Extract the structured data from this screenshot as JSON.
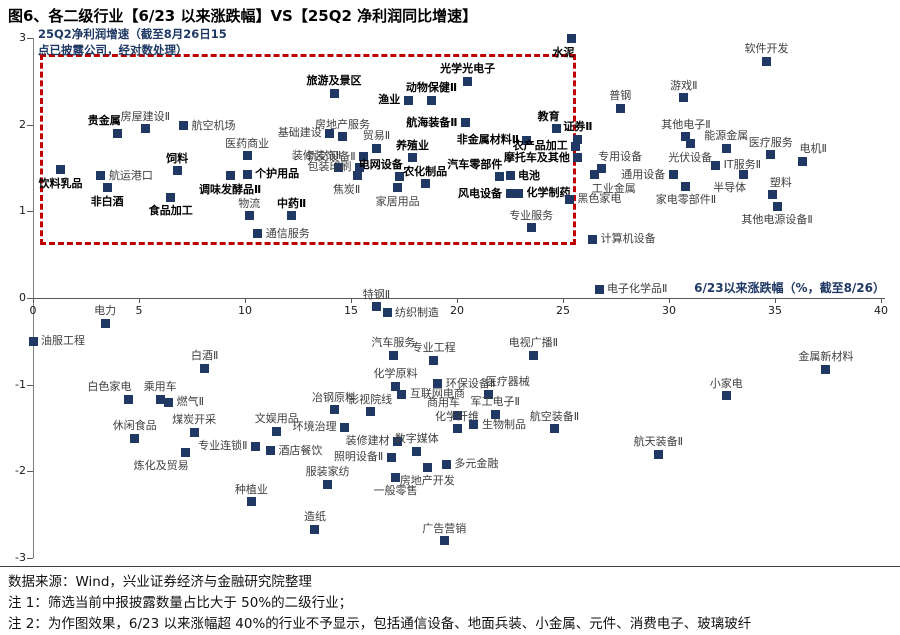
{
  "title": "图6、各二级行业【6/23 以来涨跌幅】VS【25Q2 净利润同比增速】",
  "footer": {
    "source": "数据来源：Wind，兴业证券经济与金融研究院整理",
    "note1": "注 1：筛选当前中报披露数量占比大于 50%的二级行业；",
    "note2": "注 2：为作图效果，6/23 以来涨幅超 40%的行业不予显示，包括通信设备、地面兵装、小金属、元件、消费电子、玻璃玻纤"
  },
  "chart_data": {
    "type": "scatter",
    "title": "图6、各二级行业【6/23 以来涨跌幅】VS【25Q2 净利润同比增速】",
    "xlabel": "6/23以来涨跌幅（%，截至8/26）",
    "ylabel": "25Q2净利润增速（截至8月26日15\n点已披露公司，经对数处理）",
    "xlim": [
      0,
      40
    ],
    "ylim": [
      -3,
      3
    ],
    "x_ticks": [
      0,
      5,
      10,
      15,
      20,
      25,
      30,
      35,
      40
    ],
    "y_ticks": [
      3,
      2,
      1,
      0,
      -1,
      -2,
      -3
    ],
    "grid": false,
    "legend_position": "none",
    "marker_color": "#1F3864",
    "highlight_box": {
      "x0": 0.33,
      "x1": 25.6,
      "y0": 0.61,
      "y1": 2.81,
      "color": "#C00000"
    },
    "points": [
      {
        "l": "饮料乳品",
        "x": 1.3,
        "y": 1.48,
        "p": "b",
        "b": 1
      },
      {
        "l": "航运港口",
        "x": 3.2,
        "y": 1.41,
        "p": "r",
        "b": 0
      },
      {
        "l": "非白酒",
        "x": 3.5,
        "y": 1.27,
        "p": "b",
        "b": 1
      },
      {
        "l": "贵金属",
        "x": 4.0,
        "y": 1.9,
        "p": "al",
        "b": 1
      },
      {
        "l": "房屋建设Ⅱ",
        "x": 5.3,
        "y": 1.95,
        "p": "a",
        "b": 0
      },
      {
        "l": "食品加工",
        "x": 6.5,
        "y": 1.16,
        "p": "b",
        "b": 1
      },
      {
        "l": "饲料",
        "x": 6.8,
        "y": 1.47,
        "p": "a",
        "b": 1
      },
      {
        "l": "航空机场",
        "x": 7.1,
        "y": 1.99,
        "p": "r",
        "b": 0
      },
      {
        "l": "调味发酵品Ⅱ",
        "x": 9.3,
        "y": 1.41,
        "p": "b",
        "b": 1
      },
      {
        "l": "个护用品",
        "x": 10.1,
        "y": 1.43,
        "p": "r",
        "b": 1
      },
      {
        "l": "医药商业",
        "x": 10.1,
        "y": 1.64,
        "p": "a",
        "b": 0
      },
      {
        "l": "物流",
        "x": 10.2,
        "y": 0.95,
        "p": "a",
        "b": 0
      },
      {
        "l": "通信服务",
        "x": 10.6,
        "y": 0.74,
        "p": "r",
        "b": 0
      },
      {
        "l": "中药Ⅱ",
        "x": 12.2,
        "y": 0.95,
        "p": "a",
        "b": 1
      },
      {
        "l": "基础建设",
        "x": 14.0,
        "y": 1.9,
        "p": "l",
        "b": 0
      },
      {
        "l": "房地产服务",
        "x": 14.6,
        "y": 1.86,
        "p": "a",
        "b": 0
      },
      {
        "l": "装修装饰Ⅱ",
        "x": 14.4,
        "y": 1.5,
        "p": "al",
        "b": 0
      },
      {
        "l": "旅游及景区",
        "x": 14.2,
        "y": 2.36,
        "p": "a",
        "b": 1
      },
      {
        "l": "贸易Ⅱ",
        "x": 16.2,
        "y": 1.73,
        "p": "a",
        "b": 0
      },
      {
        "l": "轨交设备Ⅱ",
        "x": 15.6,
        "y": 1.63,
        "p": "l",
        "b": 0
      },
      {
        "l": "包装印刷",
        "x": 15.4,
        "y": 1.51,
        "p": "l",
        "b": 0
      },
      {
        "l": "焦炭Ⅱ",
        "x": 15.3,
        "y": 1.41,
        "p": "bl",
        "b": 0
      },
      {
        "l": "电网设备",
        "x": 17.3,
        "y": 1.4,
        "p": "al",
        "b": 1
      },
      {
        "l": "农化制品",
        "x": 18.5,
        "y": 1.32,
        "p": "a",
        "b": 1
      },
      {
        "l": "家居用品",
        "x": 17.2,
        "y": 1.27,
        "p": "b",
        "b": 0
      },
      {
        "l": "养殖业",
        "x": 17.9,
        "y": 1.62,
        "p": "a",
        "b": 1
      },
      {
        "l": "渔业",
        "x": 17.7,
        "y": 2.28,
        "p": "l",
        "b": 1
      },
      {
        "l": "动物保健Ⅱ",
        "x": 18.8,
        "y": 2.28,
        "p": "a",
        "b": 1
      },
      {
        "l": "光学光电子",
        "x": 20.5,
        "y": 2.5,
        "p": "a",
        "b": 1
      },
      {
        "l": "航海装备Ⅱ",
        "x": 20.4,
        "y": 2.02,
        "p": "l",
        "b": 1
      },
      {
        "l": "非金属材料Ⅱ",
        "x": 23.3,
        "y": 1.82,
        "p": "l",
        "b": 1
      },
      {
        "l": "汽车零部件",
        "x": 22.0,
        "y": 1.4,
        "p": "al",
        "b": 1
      },
      {
        "l": "电池",
        "x": 22.5,
        "y": 1.41,
        "p": "r",
        "b": 1
      },
      {
        "l": "风电设备",
        "x": 22.5,
        "y": 1.2,
        "p": "l",
        "b": 1
      },
      {
        "l": "化学制药",
        "x": 22.9,
        "y": 1.21,
        "p": "r",
        "b": 1
      },
      {
        "l": "教育",
        "x": 24.7,
        "y": 1.95,
        "p": "al",
        "b": 1
      },
      {
        "l": "证券Ⅱ",
        "x": 25.7,
        "y": 1.83,
        "p": "a",
        "b": 1
      },
      {
        "l": "农产品加工",
        "x": 25.6,
        "y": 1.75,
        "p": "l",
        "b": 1
      },
      {
        "l": "摩托车及其他",
        "x": 25.7,
        "y": 1.62,
        "p": "l",
        "b": 1
      },
      {
        "l": "专业服务",
        "x": 23.5,
        "y": 0.81,
        "p": "a",
        "b": 0
      },
      {
        "l": "黑色家电",
        "x": 25.3,
        "y": 1.14,
        "p": "r",
        "b": 0
      },
      {
        "l": "水泥",
        "x": 25.4,
        "y": 2.99,
        "p": "bl",
        "b": 1
      },
      {
        "l": "普钢",
        "x": 27.7,
        "y": 2.19,
        "p": "a",
        "b": 0
      },
      {
        "l": "游戏Ⅱ",
        "x": 30.7,
        "y": 2.31,
        "p": "a",
        "b": 0
      },
      {
        "l": "软件开发",
        "x": 34.6,
        "y": 2.73,
        "p": "a",
        "b": 0
      },
      {
        "l": "其他电子Ⅱ",
        "x": 30.8,
        "y": 1.86,
        "p": "a",
        "b": 0
      },
      {
        "l": "光伏设备",
        "x": 31.0,
        "y": 1.78,
        "p": "b",
        "b": 0
      },
      {
        "l": "能源金属",
        "x": 32.7,
        "y": 1.73,
        "p": "a",
        "b": 0
      },
      {
        "l": "医疗服务",
        "x": 34.8,
        "y": 1.65,
        "p": "a",
        "b": 0
      },
      {
        "l": "电机Ⅱ",
        "x": 36.3,
        "y": 1.58,
        "p": "ar",
        "b": 0
      },
      {
        "l": "IT服务Ⅱ",
        "x": 32.2,
        "y": 1.53,
        "p": "r",
        "b": 0
      },
      {
        "l": "半导体",
        "x": 33.5,
        "y": 1.43,
        "p": "bl",
        "b": 0
      },
      {
        "l": "塑料",
        "x": 34.9,
        "y": 1.19,
        "p": "ar",
        "b": 0
      },
      {
        "l": "其他电源设备Ⅱ",
        "x": 35.1,
        "y": 1.06,
        "p": "b",
        "b": 0
      },
      {
        "l": "家电零部件Ⅱ",
        "x": 30.8,
        "y": 1.29,
        "p": "b",
        "b": 0
      },
      {
        "l": "通用设备",
        "x": 30.2,
        "y": 1.42,
        "p": "l",
        "b": 0
      },
      {
        "l": "专用设备",
        "x": 26.8,
        "y": 1.49,
        "p": "ar",
        "b": 0
      },
      {
        "l": "工业金属",
        "x": 26.5,
        "y": 1.42,
        "p": "br",
        "b": 0
      },
      {
        "l": "计算机设备",
        "x": 26.4,
        "y": 0.68,
        "p": "r",
        "b": 0
      },
      {
        "l": "电子化学品Ⅱ",
        "x": 26.7,
        "y": 0.1,
        "p": "r",
        "b": 0
      },
      {
        "l": "电力",
        "x": 3.4,
        "y": -0.29,
        "p": "a",
        "b": 0
      },
      {
        "l": "油服工程",
        "x": 0.0,
        "y": -0.5,
        "p": "r",
        "b": 0
      },
      {
        "l": "白酒Ⅱ",
        "x": 8.1,
        "y": -0.81,
        "p": "a",
        "b": 0
      },
      {
        "l": "白色家电",
        "x": 4.5,
        "y": -1.17,
        "p": "al",
        "b": 0
      },
      {
        "l": "乘用车",
        "x": 6.0,
        "y": -1.17,
        "p": "a",
        "b": 0
      },
      {
        "l": "燃气Ⅱ",
        "x": 6.4,
        "y": -1.2,
        "p": "r",
        "b": 0
      },
      {
        "l": "休闲食品",
        "x": 4.8,
        "y": -1.62,
        "p": "a",
        "b": 0
      },
      {
        "l": "煤炭开采",
        "x": 7.6,
        "y": -1.55,
        "p": "a",
        "b": 0
      },
      {
        "l": "炼化及贸易",
        "x": 7.2,
        "y": -1.78,
        "p": "bl",
        "b": 0
      },
      {
        "l": "专业连锁Ⅱ",
        "x": 10.5,
        "y": -1.71,
        "p": "l",
        "b": 0
      },
      {
        "l": "酒店餐饮",
        "x": 11.2,
        "y": -1.76,
        "p": "r",
        "b": 0
      },
      {
        "l": "种植业",
        "x": 10.3,
        "y": -2.35,
        "p": "a",
        "b": 0
      },
      {
        "l": "文娱用品",
        "x": 11.5,
        "y": -1.54,
        "p": "a",
        "b": 0
      },
      {
        "l": "环境治理",
        "x": 14.7,
        "y": -1.49,
        "p": "l",
        "b": 0
      },
      {
        "l": "冶钢原料",
        "x": 14.2,
        "y": -1.29,
        "p": "a",
        "b": 0
      },
      {
        "l": "特钢Ⅱ",
        "x": 16.2,
        "y": -0.1,
        "p": "a",
        "b": 0
      },
      {
        "l": "纺织制造",
        "x": 16.7,
        "y": -0.17,
        "p": "r",
        "b": 0
      },
      {
        "l": "汽车服务",
        "x": 17.0,
        "y": -0.66,
        "p": "a",
        "b": 0
      },
      {
        "l": "专业工程",
        "x": 18.9,
        "y": -0.72,
        "p": "a",
        "b": 0
      },
      {
        "l": "化学原料",
        "x": 17.1,
        "y": -1.02,
        "p": "a",
        "b": 0
      },
      {
        "l": "影视院线",
        "x": 15.9,
        "y": -1.31,
        "p": "a",
        "b": 0
      },
      {
        "l": "互联网电商",
        "x": 17.4,
        "y": -1.11,
        "p": "r",
        "b": 0
      },
      {
        "l": "商用车",
        "x": 20.0,
        "y": -1.35,
        "p": "al",
        "b": 0
      },
      {
        "l": "化学纤维",
        "x": 20.0,
        "y": -1.51,
        "p": "a",
        "b": 0
      },
      {
        "l": "生物制品",
        "x": 20.8,
        "y": -1.46,
        "p": "r",
        "b": 0
      },
      {
        "l": "环保设备Ⅱ",
        "x": 19.1,
        "y": -0.99,
        "p": "r",
        "b": 0
      },
      {
        "l": "医疗器械",
        "x": 21.5,
        "y": -1.11,
        "p": "ar",
        "b": 0
      },
      {
        "l": "军工电子Ⅱ",
        "x": 21.8,
        "y": -1.34,
        "p": "a",
        "b": 0
      },
      {
        "l": "航空装备Ⅱ",
        "x": 24.6,
        "y": -1.51,
        "p": "a",
        "b": 0
      },
      {
        "l": "电视广播Ⅱ",
        "x": 23.6,
        "y": -0.66,
        "p": "a",
        "b": 0
      },
      {
        "l": "装修建材",
        "x": 17.2,
        "y": -1.65,
        "p": "l",
        "b": 0
      },
      {
        "l": "数字媒体",
        "x": 18.1,
        "y": -1.77,
        "p": "a",
        "b": 0
      },
      {
        "l": "照明设备Ⅱ",
        "x": 16.9,
        "y": -1.84,
        "p": "l",
        "b": 0
      },
      {
        "l": "多元金融",
        "x": 19.5,
        "y": -1.92,
        "p": "r",
        "b": 0
      },
      {
        "l": "房地产开发",
        "x": 18.6,
        "y": -1.95,
        "p": "b",
        "b": 0
      },
      {
        "l": "一般零售",
        "x": 17.1,
        "y": -2.07,
        "p": "b",
        "b": 0
      },
      {
        "l": "服装家纺",
        "x": 13.9,
        "y": -2.15,
        "p": "a",
        "b": 0
      },
      {
        "l": "造纸",
        "x": 13.3,
        "y": -2.67,
        "p": "a",
        "b": 0
      },
      {
        "l": "广告营销",
        "x": 19.4,
        "y": -2.8,
        "p": "a",
        "b": 0
      },
      {
        "l": "小家电",
        "x": 32.7,
        "y": -1.13,
        "p": "a",
        "b": 0
      },
      {
        "l": "金属新材料",
        "x": 37.4,
        "y": -0.82,
        "p": "a",
        "b": 0
      },
      {
        "l": "航天装备Ⅱ",
        "x": 29.5,
        "y": -1.8,
        "p": "a",
        "b": 0
      }
    ]
  }
}
